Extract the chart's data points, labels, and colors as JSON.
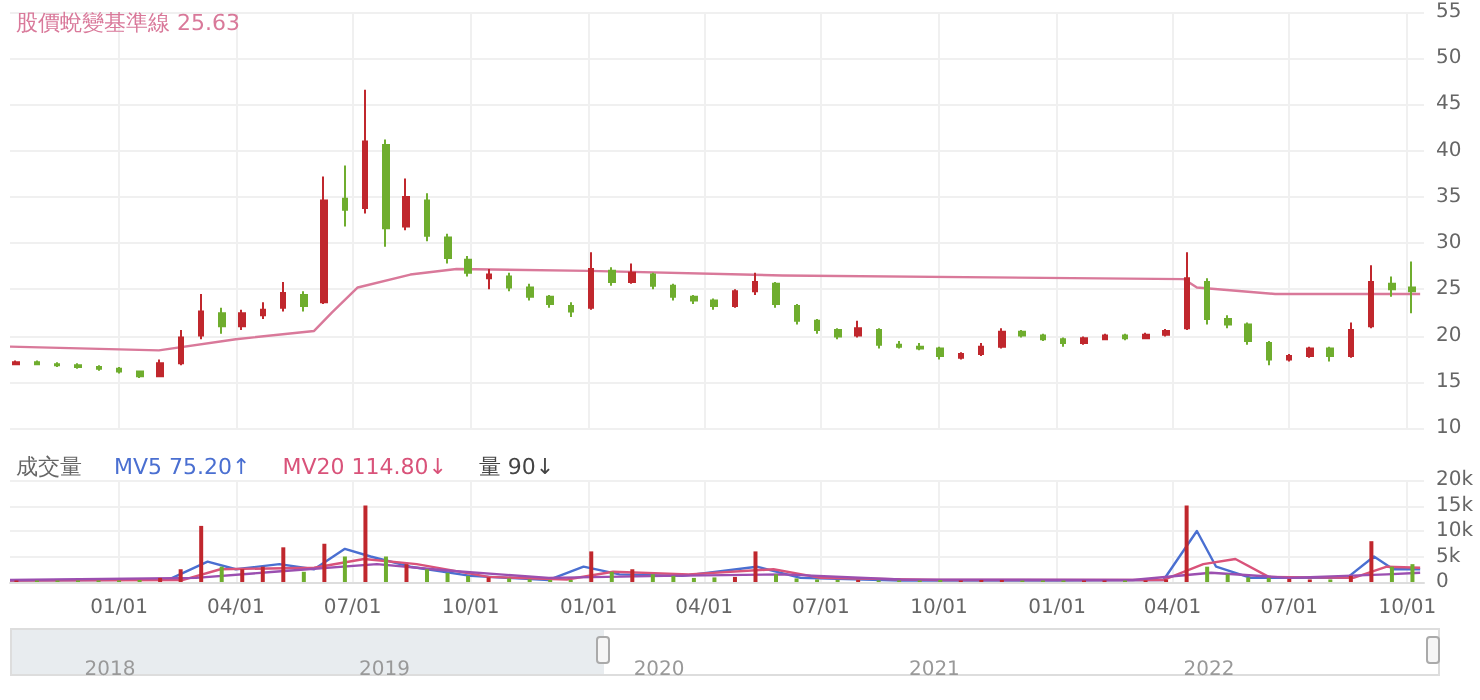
{
  "chart_data": [
    {
      "type": "candlestick",
      "xlim": [
        "2019-10-08",
        "2022-10-14"
      ],
      "ylim": [
        10,
        55
      ],
      "yticks": [
        10,
        15,
        20,
        25,
        30,
        35,
        40,
        45,
        50,
        55
      ],
      "grid": true,
      "tick_labels": "y",
      "xticks": [
        {
          "value": "2020-01-01",
          "label": null
        },
        {
          "value": "2020-04-01",
          "label": null
        },
        {
          "value": "2020-07-01",
          "label": null
        },
        {
          "value": "2020-10-01",
          "label": null
        },
        {
          "value": "2021-01-01",
          "label": null
        },
        {
          "value": "2021-04-01",
          "label": null
        },
        {
          "value": "2021-07-01",
          "label": null
        },
        {
          "value": "2021-10-01",
          "label": null
        },
        {
          "value": "2022-01-01",
          "label": null
        },
        {
          "value": "2022-04-01",
          "label": null
        },
        {
          "value": "2022-07-01",
          "label": null
        },
        {
          "value": "2022-10-01",
          "label": null
        }
      ],
      "annotations": [
        "25.63"
      ],
      "x": [
        "2019-10-13",
        "2019-10-29",
        "2019-11-14",
        "2019-11-30",
        "2019-12-16",
        "2020-01-01",
        "2020-01-17",
        "2020-02-02",
        "2020-02-18",
        "2020-03-05",
        "2020-03-21",
        "2020-04-06",
        "2020-04-22",
        "2020-05-08",
        "2020-05-24",
        "2020-06-09",
        "2020-06-25",
        "2020-07-11",
        "2020-07-27",
        "2020-08-12",
        "2020-08-28",
        "2020-09-13",
        "2020-09-29",
        "2020-10-15",
        "2020-10-31",
        "2020-11-16",
        "2020-12-02",
        "2020-12-18",
        "2021-01-03",
        "2021-01-19",
        "2021-02-04",
        "2021-02-20",
        "2021-03-08",
        "2021-03-24",
        "2021-04-09",
        "2021-04-25",
        "2021-05-11",
        "2021-05-27",
        "2021-06-12",
        "2021-06-28",
        "2021-07-14",
        "2021-07-30",
        "2021-08-15",
        "2021-08-31",
        "2021-09-16",
        "2021-10-02",
        "2021-10-18",
        "2021-11-03",
        "2021-11-19",
        "2021-12-05",
        "2021-12-21",
        "2022-01-06",
        "2022-01-22",
        "2022-02-07",
        "2022-02-23",
        "2022-03-11",
        "2022-03-27",
        "2022-04-12",
        "2022-04-28",
        "2022-05-14",
        "2022-05-30",
        "2022-06-15",
        "2022-07-01",
        "2022-07-17",
        "2022-08-02",
        "2022-08-18",
        "2022-09-03",
        "2022-09-19",
        "2022-10-05"
      ],
      "ohlc": [
        [
          16.9,
          17.3,
          16.8,
          17.1
        ],
        [
          17.1,
          17.3,
          16.8,
          16.9
        ],
        [
          16.9,
          17.1,
          16.6,
          16.8
        ],
        [
          16.8,
          17.0,
          16.4,
          16.6
        ],
        [
          16.6,
          16.8,
          16.2,
          16.4
        ],
        [
          16.4,
          16.6,
          15.9,
          16.1
        ],
        [
          16.1,
          16.2,
          15.4,
          15.6
        ],
        [
          15.6,
          17.4,
          15.5,
          17.0
        ],
        [
          17.0,
          20.6,
          16.8,
          19.8
        ],
        [
          20.0,
          24.5,
          19.6,
          22.6
        ],
        [
          22.4,
          23.0,
          20.2,
          21.0
        ],
        [
          21.0,
          22.8,
          20.6,
          22.4
        ],
        [
          22.2,
          23.6,
          21.8,
          22.8
        ],
        [
          23.0,
          25.8,
          22.6,
          24.6
        ],
        [
          24.4,
          24.8,
          22.6,
          23.2
        ],
        [
          23.6,
          37.2,
          23.4,
          34.6
        ],
        [
          34.8,
          38.4,
          31.8,
          33.6
        ],
        [
          33.8,
          46.6,
          33.2,
          41.0
        ],
        [
          40.6,
          41.2,
          29.6,
          31.6
        ],
        [
          31.8,
          37.0,
          31.4,
          35.0
        ],
        [
          34.6,
          35.4,
          30.2,
          30.8
        ],
        [
          30.6,
          31.0,
          27.8,
          28.4
        ],
        [
          28.2,
          28.6,
          26.4,
          26.8
        ],
        [
          26.2,
          27.2,
          25.0,
          26.6
        ],
        [
          26.4,
          26.8,
          24.8,
          25.2
        ],
        [
          25.2,
          25.6,
          23.8,
          24.2
        ],
        [
          24.2,
          24.4,
          23.0,
          23.4
        ],
        [
          23.2,
          23.6,
          22.0,
          22.6
        ],
        [
          23.0,
          29.0,
          22.8,
          27.2
        ],
        [
          27.0,
          27.4,
          25.4,
          25.8
        ],
        [
          25.8,
          27.8,
          25.6,
          26.8
        ],
        [
          26.6,
          26.8,
          25.0,
          25.4
        ],
        [
          25.4,
          25.6,
          23.8,
          24.2
        ],
        [
          24.2,
          24.4,
          23.4,
          23.8
        ],
        [
          23.8,
          24.0,
          22.8,
          23.2
        ],
        [
          23.2,
          25.0,
          23.0,
          24.8
        ],
        [
          24.8,
          26.8,
          24.4,
          25.8
        ],
        [
          25.6,
          25.8,
          23.0,
          23.4
        ],
        [
          23.2,
          23.4,
          21.2,
          21.6
        ],
        [
          21.6,
          21.8,
          20.2,
          20.6
        ],
        [
          20.6,
          20.8,
          19.6,
          19.9
        ],
        [
          20.0,
          21.6,
          19.8,
          20.8
        ],
        [
          20.6,
          20.8,
          18.6,
          19.0
        ],
        [
          19.0,
          19.4,
          18.6,
          18.8
        ],
        [
          18.8,
          19.2,
          18.4,
          18.6
        ],
        [
          18.6,
          18.8,
          17.4,
          17.8
        ],
        [
          17.6,
          18.2,
          17.4,
          18.0
        ],
        [
          18.0,
          19.2,
          17.8,
          18.8
        ],
        [
          18.8,
          20.8,
          18.6,
          20.4
        ],
        [
          20.4,
          20.6,
          19.8,
          20.0
        ],
        [
          20.0,
          20.2,
          19.4,
          19.6
        ],
        [
          19.6,
          19.8,
          18.8,
          19.2
        ],
        [
          19.2,
          19.9,
          19.0,
          19.7
        ],
        [
          19.6,
          20.2,
          19.5,
          20.0
        ],
        [
          20.0,
          20.2,
          19.5,
          19.7
        ],
        [
          19.7,
          20.3,
          19.6,
          20.1
        ],
        [
          20.1,
          20.7,
          19.9,
          20.5
        ],
        [
          20.8,
          29.0,
          20.6,
          26.2
        ],
        [
          25.8,
          26.2,
          21.2,
          21.8
        ],
        [
          21.8,
          22.2,
          20.8,
          21.2
        ],
        [
          21.2,
          21.4,
          19.0,
          19.4
        ],
        [
          19.2,
          19.4,
          16.8,
          17.4
        ],
        [
          17.4,
          18.0,
          17.2,
          17.8
        ],
        [
          17.8,
          18.8,
          17.6,
          18.6
        ],
        [
          18.6,
          18.8,
          17.2,
          17.8
        ],
        [
          17.8,
          21.4,
          17.6,
          20.6
        ],
        [
          21.0,
          27.6,
          20.8,
          25.8
        ],
        [
          25.6,
          26.4,
          24.2,
          25.0
        ],
        [
          25.2,
          28.0,
          22.4,
          24.8
        ]
      ],
      "colors": [
        "#c0272d",
        "#6fad2e",
        "#6fad2e",
        "#6fad2e",
        "#6fad2e",
        "#6fad2e",
        "#6fad2e",
        "#c0272d",
        "#c0272d",
        "#c0272d",
        "#6fad2e",
        "#c0272d",
        "#c0272d",
        "#c0272d",
        "#6fad2e",
        "#c0272d",
        "#6fad2e",
        "#c0272d",
        "#6fad2e",
        "#c0272d",
        "#6fad2e",
        "#6fad2e",
        "#6fad2e",
        "#c0272d",
        "#6fad2e",
        "#6fad2e",
        "#6fad2e",
        "#6fad2e",
        "#c0272d",
        "#6fad2e",
        "#c0272d",
        "#6fad2e",
        "#6fad2e",
        "#6fad2e",
        "#6fad2e",
        "#c0272d",
        "#c0272d",
        "#6fad2e",
        "#6fad2e",
        "#6fad2e",
        "#6fad2e",
        "#c0272d",
        "#6fad2e",
        "#6fad2e",
        "#6fad2e",
        "#6fad2e",
        "#c0272d",
        "#c0272d",
        "#c0272d",
        "#6fad2e",
        "#6fad2e",
        "#6fad2e",
        "#c0272d",
        "#c0272d",
        "#6fad2e",
        "#c0272d",
        "#c0272d",
        "#c0272d",
        "#6fad2e",
        "#6fad2e",
        "#6fad2e",
        "#6fad2e",
        "#c0272d",
        "#c0272d",
        "#6fad2e",
        "#c0272d",
        "#c0272d",
        "#6fad2e",
        "#6fad2e"
      ],
      "series": [
        {
          "type": "line",
          "name": "股價蛻變基準線",
          "color": "#d9799a",
          "x": [
            "2019-10-08",
            "2020-02-01",
            "2020-04-01",
            "2020-06-01",
            "2020-06-15",
            "2020-07-05",
            "2020-08-15",
            "2020-09-20",
            "2021-01-01",
            "2021-06-01",
            "2022-04-10",
            "2022-04-20",
            "2022-06-20",
            "2022-10-11"
          ],
          "values": [
            18.8,
            18.4,
            19.6,
            20.5,
            22.5,
            25.2,
            26.6,
            27.2,
            27.0,
            26.5,
            26.1,
            25.2,
            24.5,
            24.5
          ]
        }
      ]
    },
    {
      "type": "bar",
      "title": "成交量",
      "xlim": [
        "2019-10-08",
        "2022-10-14"
      ],
      "x2lim": [
        "2017-08-21",
        "2022-10-14"
      ],
      "x2ticks": [
        {
          "value": "2018-01-01",
          "label": "2018"
        },
        {
          "value": "2019-01-01",
          "label": "2019"
        },
        {
          "value": "2020-01-01",
          "label": "2020"
        },
        {
          "value": "2021-01-01",
          "label": "2021"
        },
        {
          "value": "2022-01-01",
          "label": "2022"
        }
      ],
      "ylim": [
        0,
        20000
      ],
      "yticks": [
        0,
        {
          "value": 5000,
          "label": "5k"
        },
        {
          "value": 10000,
          "label": "10k"
        },
        {
          "value": 15000,
          "label": "15k"
        },
        {
          "value": 20000,
          "label": "20k"
        }
      ],
      "grid": true,
      "xticks": [
        {
          "value": "2020-01-01",
          "label": "01/01"
        },
        {
          "value": "2020-04-01",
          "label": "04/01"
        },
        {
          "value": "2020-07-01",
          "label": "07/01"
        },
        {
          "value": "2020-10-01",
          "label": "10/01"
        },
        {
          "value": "2021-01-01",
          "label": "01/01"
        },
        {
          "value": "2021-04-01",
          "label": "04/01"
        },
        {
          "value": "2021-07-01",
          "label": "07/01"
        },
        {
          "value": "2021-10-01",
          "label": "10/01"
        },
        {
          "value": "2022-01-01",
          "label": "01/01"
        },
        {
          "value": "2022-04-01",
          "label": "04/01"
        },
        {
          "value": "2022-07-01",
          "label": "07/01"
        },
        {
          "value": "2022-10-01",
          "label": "10/01"
        }
      ],
      "annotations": [
        "75.20↑",
        "114.80↓",
        "量 90↓"
      ],
      "x": [
        "2019-10-13",
        "2019-10-29",
        "2019-11-14",
        "2019-11-30",
        "2019-12-16",
        "2020-01-01",
        "2020-01-17",
        "2020-02-02",
        "2020-02-18",
        "2020-03-05",
        "2020-03-21",
        "2020-04-06",
        "2020-04-22",
        "2020-05-08",
        "2020-05-24",
        "2020-06-09",
        "2020-06-25",
        "2020-07-11",
        "2020-07-27",
        "2020-08-12",
        "2020-08-28",
        "2020-09-13",
        "2020-09-29",
        "2020-10-15",
        "2020-10-31",
        "2020-11-16",
        "2020-12-02",
        "2020-12-18",
        "2021-01-03",
        "2021-01-19",
        "2021-02-04",
        "2021-02-20",
        "2021-03-08",
        "2021-03-24",
        "2021-04-09",
        "2021-04-25",
        "2021-05-11",
        "2021-05-27",
        "2021-06-12",
        "2021-06-28",
        "2021-07-14",
        "2021-07-30",
        "2021-08-15",
        "2021-08-31",
        "2021-09-16",
        "2021-10-02",
        "2021-10-18",
        "2021-11-03",
        "2021-11-19",
        "2021-12-05",
        "2021-12-21",
        "2022-01-06",
        "2022-01-22",
        "2022-02-07",
        "2022-02-23",
        "2022-03-11",
        "2022-03-27",
        "2022-04-12",
        "2022-04-28",
        "2022-05-14",
        "2022-05-30",
        "2022-06-15",
        "2022-07-01",
        "2022-07-17",
        "2022-08-02",
        "2022-08-18",
        "2022-09-03",
        "2022-09-19",
        "2022-10-05"
      ],
      "values": [
        300,
        300,
        300,
        300,
        300,
        300,
        400,
        800,
        2500,
        11000,
        3000,
        2500,
        3000,
        6800,
        2000,
        7500,
        5000,
        15000,
        5000,
        3500,
        2500,
        1800,
        1200,
        900,
        700,
        500,
        400,
        400,
        6000,
        2000,
        2500,
        1500,
        1200,
        800,
        900,
        1000,
        6000,
        1500,
        700,
        500,
        400,
        400,
        300,
        300,
        300,
        400,
        300,
        400,
        400,
        300,
        300,
        300,
        300,
        300,
        300,
        300,
        500,
        15000,
        3000,
        1500,
        900,
        800,
        600,
        500,
        500,
        1200,
        8000,
        3000,
        3500
      ],
      "colors": [
        "#c0272d",
        "#6fad2e",
        "#6fad2e",
        "#6fad2e",
        "#6fad2e",
        "#6fad2e",
        "#6fad2e",
        "#c0272d",
        "#c0272d",
        "#c0272d",
        "#6fad2e",
        "#c0272d",
        "#c0272d",
        "#c0272d",
        "#6fad2e",
        "#c0272d",
        "#6fad2e",
        "#c0272d",
        "#6fad2e",
        "#c0272d",
        "#6fad2e",
        "#6fad2e",
        "#6fad2e",
        "#c0272d",
        "#6fad2e",
        "#6fad2e",
        "#6fad2e",
        "#6fad2e",
        "#c0272d",
        "#6fad2e",
        "#c0272d",
        "#6fad2e",
        "#6fad2e",
        "#6fad2e",
        "#6fad2e",
        "#c0272d",
        "#c0272d",
        "#6fad2e",
        "#6fad2e",
        "#6fad2e",
        "#6fad2e",
        "#c0272d",
        "#6fad2e",
        "#6fad2e",
        "#6fad2e",
        "#6fad2e",
        "#c0272d",
        "#c0272d",
        "#c0272d",
        "#6fad2e",
        "#6fad2e",
        "#6fad2e",
        "#c0272d",
        "#c0272d",
        "#6fad2e",
        "#c0272d",
        "#c0272d",
        "#c0272d",
        "#6fad2e",
        "#6fad2e",
        "#6fad2e",
        "#6fad2e",
        "#c0272d",
        "#c0272d",
        "#6fad2e",
        "#c0272d",
        "#c0272d",
        "#6fad2e",
        "#6fad2e"
      ],
      "series": [
        {
          "type": "line",
          "name": "MV5",
          "color": "#4a6fd1",
          "x": [
            "2019-10-08",
            "2020-02-09",
            "2020-03-10",
            "2020-04-01",
            "2020-05-05",
            "2020-06-01",
            "2020-06-25",
            "2020-07-15",
            "2020-08-15",
            "2020-10-01",
            "2020-12-01",
            "2020-12-28",
            "2021-01-25",
            "2021-03-15",
            "2021-05-12",
            "2021-06-15",
            "2021-09-01",
            "2022-01-01",
            "2022-03-25",
            "2022-04-20",
            "2022-05-05",
            "2022-06-01",
            "2022-08-15",
            "2022-09-05",
            "2022-09-20",
            "2022-10-11"
          ],
          "values": [
            300,
            500,
            4000,
            2500,
            3500,
            2500,
            6500,
            5000,
            3000,
            1200,
            400,
            3000,
            1500,
            1200,
            3000,
            800,
            300,
            300,
            400,
            10000,
            3000,
            800,
            800,
            5000,
            2500,
            2500
          ]
        },
        {
          "type": "line",
          "name": "MV20",
          "color": "#d9537a",
          "x": [
            "2019-10-08",
            "2020-02-20",
            "2020-03-20",
            "2020-06-01",
            "2020-07-10",
            "2020-08-20",
            "2020-10-15",
            "2020-12-15",
            "2021-01-20",
            "2021-03-20",
            "2021-05-25",
            "2021-07-01",
            "2021-10-01",
            "2022-03-25",
            "2022-04-25",
            "2022-05-20",
            "2022-06-15",
            "2022-08-20",
            "2022-09-15",
            "2022-10-11"
          ],
          "values": [
            300,
            400,
            2500,
            2800,
            4500,
            3500,
            1000,
            500,
            2000,
            1500,
            2500,
            800,
            400,
            400,
            3500,
            4500,
            1000,
            800,
            3000,
            2800
          ]
        },
        {
          "type": "line",
          "color": "#9b4fb0",
          "x": [
            "2019-10-08",
            "2020-03-01",
            "2020-05-01",
            "2020-07-20",
            "2020-09-15",
            "2020-12-01",
            "2021-03-01",
            "2021-06-01",
            "2021-09-01",
            "2022-03-01",
            "2022-05-01",
            "2022-07-01",
            "2022-09-15",
            "2022-10-11"
          ],
          "values": [
            400,
            800,
            2000,
            3500,
            2200,
            800,
            1200,
            1500,
            500,
            400,
            1800,
            800,
            1500,
            1800
          ]
        }
      ]
    }
  ]
}
